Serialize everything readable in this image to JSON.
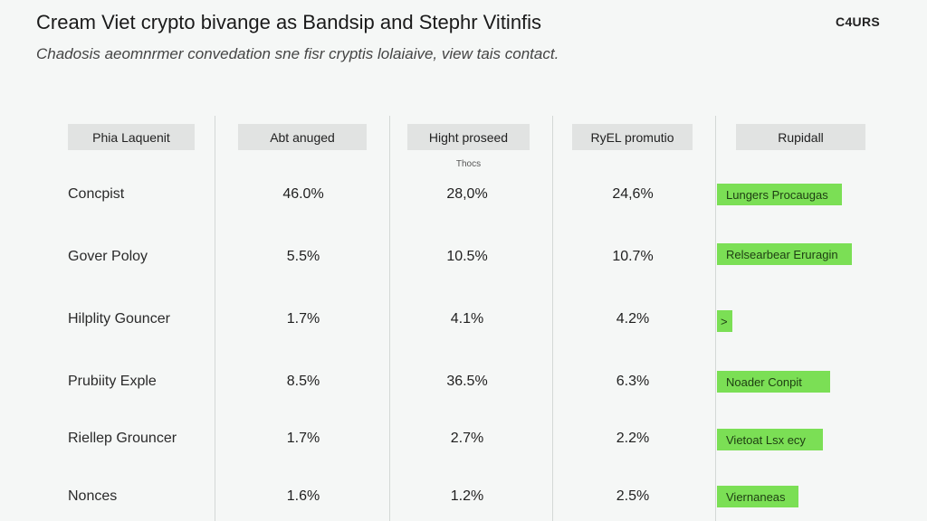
{
  "header": {
    "title": "Cream Viet crypto bivange as Bandsip and Stephr Vitinfis",
    "brand": "C4URS",
    "subtitle": "Chadosis aeomnrmer convedation sne fisr cryptis lolaiaive, view tais contact."
  },
  "table": {
    "columns": [
      "Phia Laquenit",
      "Abt anuged",
      "Hight proseed",
      "RyEL promutio",
      "Rupidall"
    ],
    "note": "Thocs",
    "rows": [
      {
        "label": "Concpist",
        "values": [
          "46.0%",
          "28,0%",
          "24,6%"
        ],
        "tag": "Lungers Procaugas"
      },
      {
        "label": "Gover Poloy",
        "values": [
          "5.5%",
          "10.5%",
          "10.7%"
        ],
        "tag": "Relsearbear Eruragin"
      },
      {
        "label": "Hilplity Gouncer",
        "values": [
          "1.7%",
          "4.1%",
          "4.2%"
        ],
        "tag": ">"
      },
      {
        "label": "Prubiity Exple",
        "values": [
          "8.5%",
          "36.5%",
          "6.3%"
        ],
        "tag": "Noader Conpit"
      },
      {
        "label": "Riellep Grouncer",
        "values": [
          "1.7%",
          "2.7%",
          "2.2%"
        ],
        "tag": "Vietoat Lsx ecy"
      },
      {
        "label": "Nonces",
        "values": [
          "1.6%",
          "1.2%",
          "2.5%"
        ],
        "tag": "Viernaneas"
      }
    ]
  },
  "colors": {
    "accent": "#7bdf55",
    "header_bg": "#e1e3e2",
    "background": "#f5f7f6"
  }
}
